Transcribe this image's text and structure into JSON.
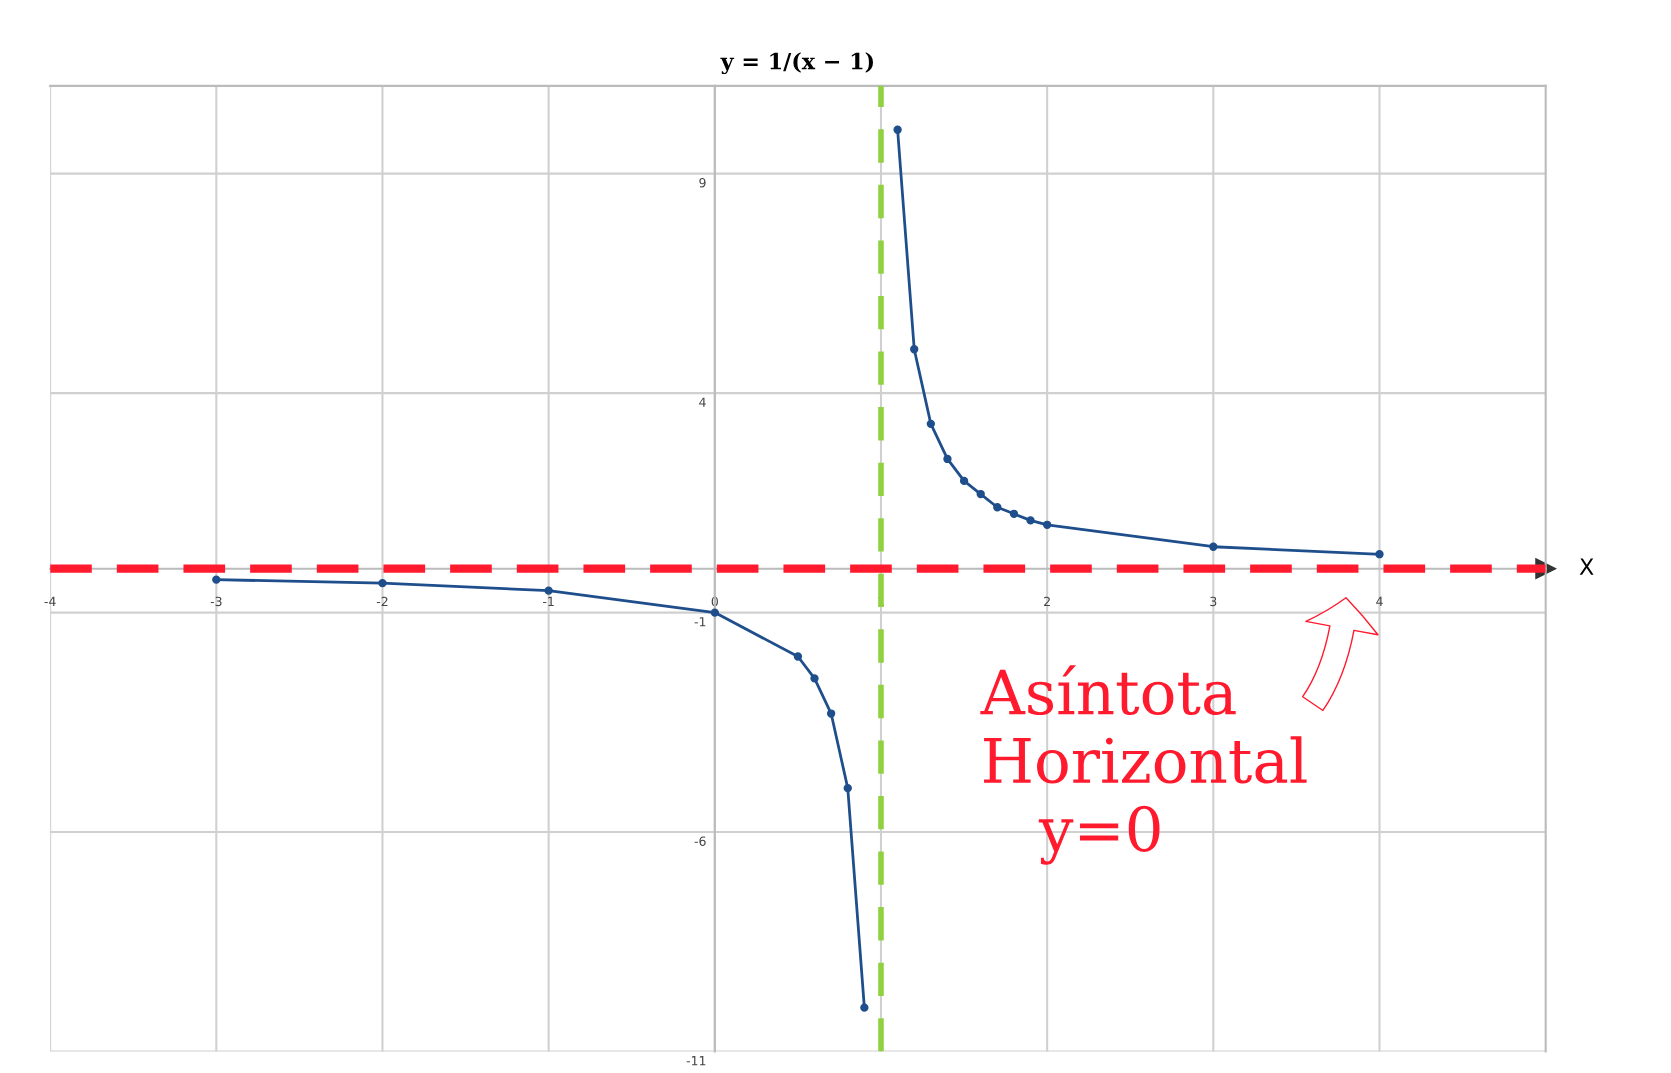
{
  "chart_data": {
    "type": "line",
    "title": "y = 1/(x − 1)",
    "xlabel": "X",
    "xlim": [
      -4,
      5
    ],
    "ylim": [
      -11,
      11
    ],
    "xticks": [
      -4,
      -3,
      -2,
      -1,
      0,
      1,
      2,
      3,
      4
    ],
    "yticks": [
      -11,
      -6,
      -1,
      4,
      9
    ],
    "grid": true,
    "marker": "circle",
    "line_style": "solid",
    "series": [
      {
        "color": "#1f4e8c",
        "x": [
          -3,
          -2,
          -1,
          0,
          0.5,
          0.6,
          0.7,
          0.8,
          0.9
        ],
        "values": [
          -0.25,
          -0.33,
          -0.5,
          -1,
          -2,
          -2.5,
          -3.3,
          -5,
          -10
        ]
      },
      {
        "color": "#1f4e8c",
        "x": [
          1.1,
          1.2,
          1.3,
          1.4,
          1.5,
          1.6,
          1.7,
          1.8,
          1.9,
          2,
          3,
          4
        ],
        "values": [
          10,
          5,
          3.3,
          2.5,
          2,
          1.7,
          1.4,
          1.25,
          1.1,
          1,
          0.5,
          0.33
        ]
      }
    ],
    "ref_lines": [
      {
        "axis": "x",
        "value": 1,
        "color": "#8fd13f",
        "line_style": "dashed"
      },
      {
        "axis": "y",
        "value": 0,
        "color": "#ff1a2e",
        "line_style": "dashed",
        "label": "Asíntota\nHorizontal\n   y=0"
      }
    ]
  }
}
